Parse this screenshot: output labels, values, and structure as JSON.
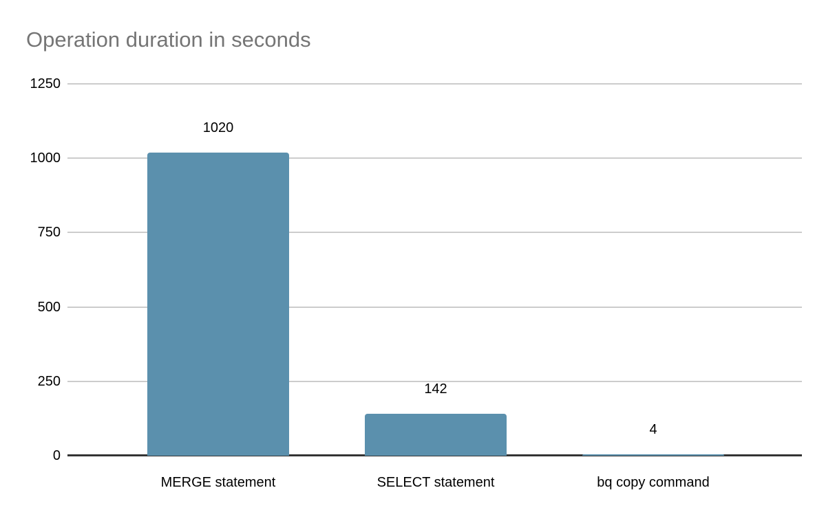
{
  "chart_data": {
    "type": "bar",
    "title": "Operation duration in seconds",
    "categories": [
      "MERGE statement",
      "SELECT statement",
      "bq copy command"
    ],
    "values": [
      1020,
      142,
      4
    ],
    "xlabel": "",
    "ylabel": "",
    "ylim": [
      0,
      1250
    ],
    "yticks": [
      0,
      250,
      500,
      750,
      1000,
      1250
    ],
    "grid": true,
    "legend": "none",
    "data_labels": true,
    "colors": {
      "bar": "#5b90ad",
      "gridline": "#cccccc",
      "axis": "#333333",
      "title_text": "#757575",
      "label_text": "#000000"
    }
  }
}
